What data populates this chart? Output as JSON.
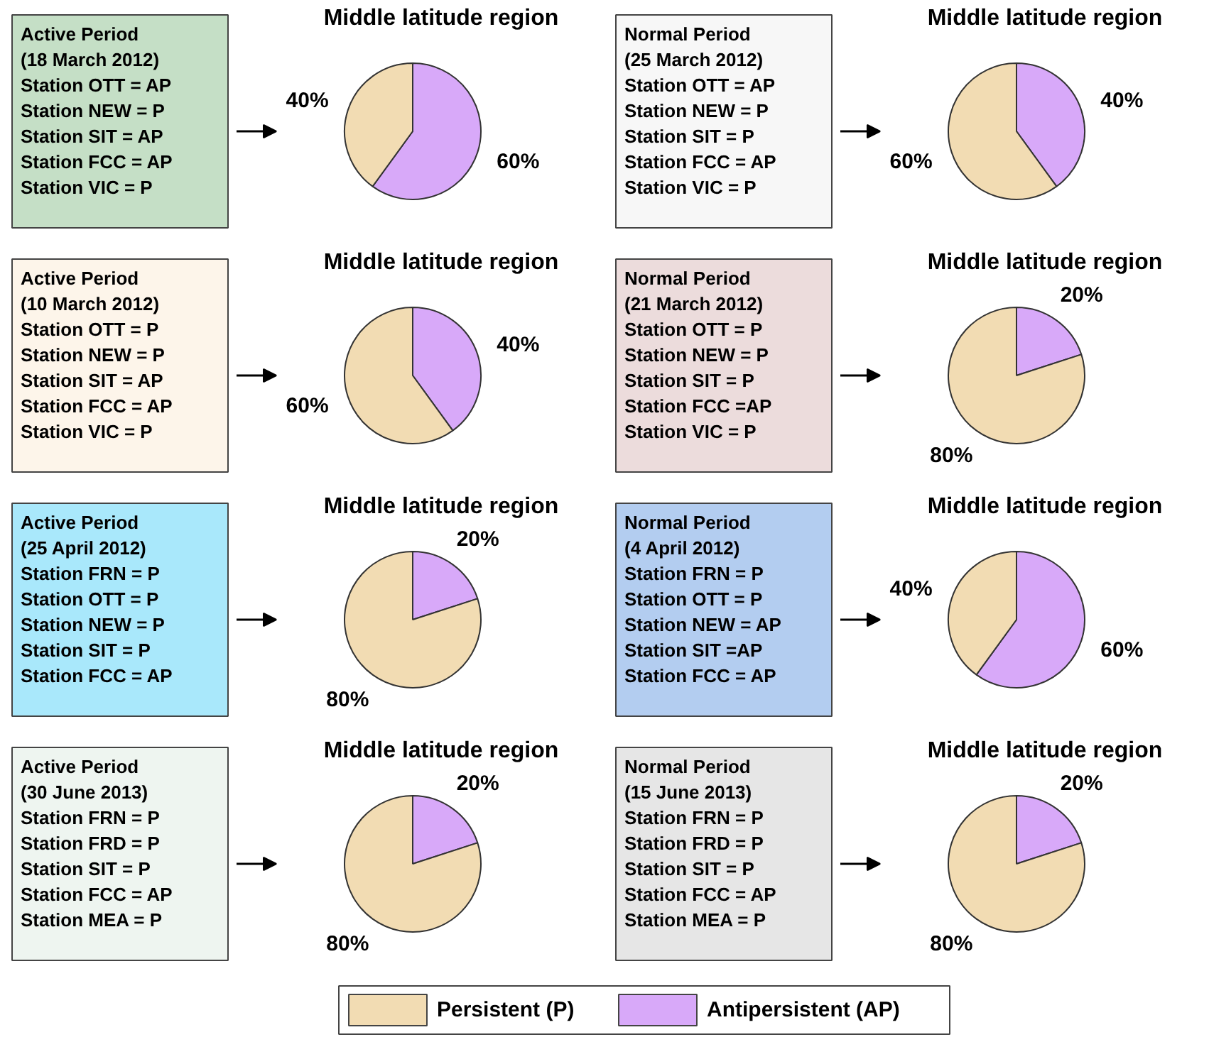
{
  "chart_data": [
    {
      "type": "pie",
      "title": "Middle latitude region",
      "categories": [
        "Persistent (P)",
        "Antipersistent (AP)"
      ],
      "values": [
        40,
        60
      ],
      "colors": [
        "#f2dcb3",
        "#d8a9f9"
      ],
      "value_labels": [
        "40%",
        "60%"
      ],
      "annotations": [
        "Active Period\n(18 March 2012)\nStation OTT = AP\nStation NEW = P\nStation SIT = AP\nStation FCC = AP\nStation VIC = P"
      ],
      "legend": "bottom"
    },
    {
      "type": "pie",
      "title": "Middle latitude region",
      "values": [
        60,
        40
      ],
      "colors": [
        "#f2dcb3",
        "#d8a9f9"
      ],
      "value_labels": [
        "60%",
        "40%"
      ],
      "annotations": [
        "Normal Period\n(25 March 2012)\nStation OTT = AP\nStation NEW = P\nStation SIT = P\nStation FCC = AP\nStation VIC = P"
      ]
    },
    {
      "type": "pie",
      "title": "Middle latitude region",
      "values": [
        60,
        40
      ],
      "colors": [
        "#f2dcb3",
        "#d8a9f9"
      ],
      "value_labels": [
        "60%",
        "40%"
      ],
      "annotations": [
        "Active Period\n(10 March 2012)\nStation OTT = P\nStation NEW = P\nStation SIT = AP\nStation FCC = AP\nStation VIC = P"
      ]
    },
    {
      "type": "pie",
      "title": "Middle latitude region",
      "values": [
        80,
        20
      ],
      "colors": [
        "#f2dcb3",
        "#d8a9f9"
      ],
      "value_labels": [
        "80%",
        "20%"
      ],
      "annotations": [
        "Normal Period\n(21 March 2012)\nStation OTT = P\nStation NEW = P\nStation SIT = P\nStation FCC =AP\nStation VIC = P"
      ]
    },
    {
      "type": "pie",
      "title": "Middle latitude region",
      "values": [
        80,
        20
      ],
      "colors": [
        "#f2dcb3",
        "#d8a9f9"
      ],
      "value_labels": [
        "80%",
        "20%"
      ],
      "annotations": [
        "Active Period\n(25 April 2012)\nStation FRN = P\nStation OTT = P\nStation NEW = P\nStation SIT = P\nStation FCC = AP"
      ]
    },
    {
      "type": "pie",
      "title": "Middle latitude region",
      "values": [
        40,
        60
      ],
      "colors": [
        "#f2dcb3",
        "#d8a9f9"
      ],
      "value_labels": [
        "40%",
        "60%"
      ],
      "annotations": [
        "Normal Period\n(4 April 2012)\nStation FRN = P\nStation OTT = P\nStation NEW = AP\nStation SIT =AP\nStation FCC = AP"
      ]
    },
    {
      "type": "pie",
      "title": "Middle latitude region",
      "values": [
        80,
        20
      ],
      "colors": [
        "#f2dcb3",
        "#d8a9f9"
      ],
      "value_labels": [
        "80%",
        "20%"
      ],
      "annotations": [
        "Active Period\n(30 June 2013)\nStation FRN = P\nStation FRD = P\nStation SIT = P\nStation FCC = AP\nStation MEA = P"
      ]
    },
    {
      "type": "pie",
      "title": "Middle latitude region",
      "values": [
        80,
        20
      ],
      "colors": [
        "#f2dcb3",
        "#d8a9f9"
      ],
      "value_labels": [
        "80%",
        "20%"
      ],
      "annotations": [
        "Normal Period\n(15 June 2013)\nStation FRN = P\nStation FRD = P\nStation SIT = P\nStation FCC = AP\nStation MEA = P"
      ]
    }
  ]
}
